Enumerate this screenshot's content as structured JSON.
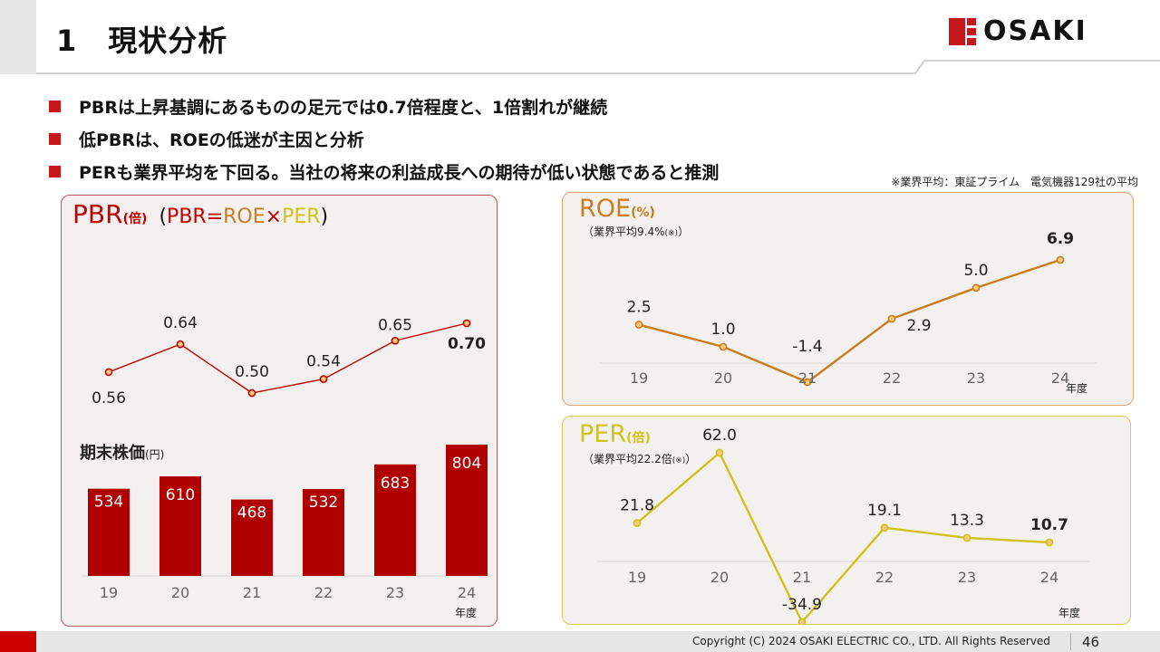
{
  "header": {
    "section_num": "1",
    "title": "現状分析",
    "logo_text": "OSAKI"
  },
  "bullets": [
    "PBRは上昇基調にあるものの足元では0.7倍程度と、1倍割れが継続",
    "低PBRは、ROEの低迷が主因と分析",
    "PERも業界平均を下回る。当社の将来の利益成長への期待が低い状態であると推測"
  ],
  "note": "※業界平均：東証プライム　電気機器129社の平均",
  "footer": {
    "copyright": "Copyright (C) 2024 OSAKI ELECTRIC CO., LTD. All Rights Reserved",
    "page": "46"
  },
  "colors": {
    "pbr": "#c00000",
    "roe": "#c87d1e",
    "per": "#cfc21a",
    "bar": "#b00000",
    "accent": "#c8161d"
  },
  "pbr_panel": {
    "title": "PBR",
    "title_unit": "(倍)",
    "formula_open": "(",
    "formula_pbr": "PBR",
    "formula_eq": "=",
    "formula_roe": "ROE",
    "formula_x": "×",
    "formula_per": "PER",
    "formula_close": ")",
    "bar_title": "期末株価",
    "bar_unit": "(円)",
    "xlabel": "年度"
  },
  "roe_panel": {
    "title": "ROE",
    "title_unit": "(%)",
    "subtitle": "（業界平均9.4%",
    "subtitle_mark": "(※)",
    "subtitle_close": "）",
    "xlabel": "年度"
  },
  "per_panel": {
    "title": "PER",
    "title_unit": "(倍)",
    "subtitle": "（業界平均22.2倍",
    "subtitle_mark": "(※)",
    "subtitle_close": "）",
    "xlabel": "年度"
  },
  "chart_data": [
    {
      "type": "line",
      "name": "PBR",
      "categories": [
        "19",
        "20",
        "21",
        "22",
        "23",
        "24"
      ],
      "values": [
        0.56,
        0.64,
        0.5,
        0.54,
        0.65,
        0.7
      ],
      "labels": [
        "0.56",
        "0.64",
        "0.50",
        "0.54",
        "0.65",
        "0.70"
      ],
      "highlight_last": true
    },
    {
      "type": "bar",
      "name": "期末株価",
      "categories": [
        "19",
        "20",
        "21",
        "22",
        "23",
        "24"
      ],
      "values": [
        534,
        610,
        468,
        532,
        683,
        804
      ],
      "labels": [
        "534",
        "610",
        "468",
        "532",
        "683",
        "804"
      ]
    },
    {
      "type": "line",
      "name": "ROE",
      "categories": [
        "19",
        "20",
        "21",
        "22",
        "23",
        "24"
      ],
      "values": [
        2.5,
        1.0,
        -1.4,
        2.9,
        5.0,
        6.9
      ],
      "labels": [
        "2.5",
        "1.0",
        "-1.4",
        "2.9",
        "5.0",
        "6.9"
      ],
      "highlight_last": true
    },
    {
      "type": "line",
      "name": "PER",
      "categories": [
        "19",
        "20",
        "21",
        "22",
        "23",
        "24"
      ],
      "values": [
        21.8,
        62.0,
        -34.9,
        19.1,
        13.3,
        10.7
      ],
      "labels": [
        "21.8",
        "62.0",
        "-34.9",
        "19.1",
        "13.3",
        "10.7"
      ],
      "highlight_last": true
    }
  ]
}
